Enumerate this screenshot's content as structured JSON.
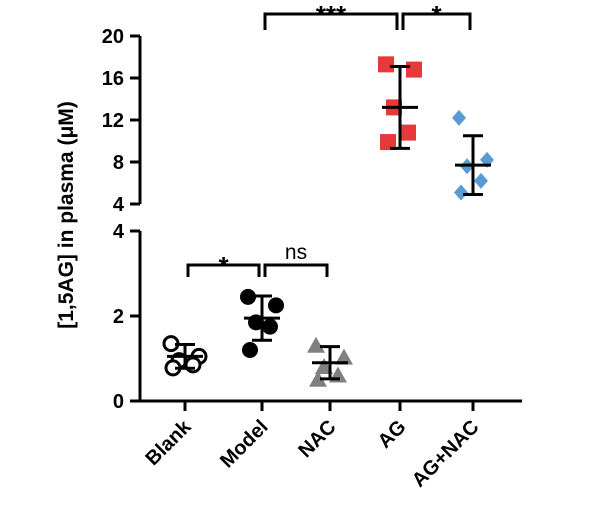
{
  "chart_data": {
    "type": "scatter",
    "ylabel": "[1,5AG] in plasma (μM)",
    "y_axis_segments": [
      {
        "range": [
          0,
          4
        ],
        "ticks": [
          0,
          2,
          4
        ],
        "tick_labels": [
          "0",
          "2",
          "4"
        ]
      },
      {
        "range": [
          4,
          20
        ],
        "ticks": [
          4,
          8,
          12,
          16,
          20
        ],
        "tick_labels": [
          "4",
          "8",
          "12",
          "16",
          "20"
        ]
      }
    ],
    "categories": [
      "Blank",
      "Model",
      "NAC",
      "AG",
      "AG+NAC"
    ],
    "groups": [
      {
        "name": "Blank",
        "marker": "open-circle",
        "color": "#000000",
        "mean": 1.05,
        "sd": 0.28,
        "points": [
          1.35,
          1.05,
          0.95,
          0.85,
          0.78
        ]
      },
      {
        "name": "Model",
        "marker": "filled-circle",
        "color": "#000000",
        "mean": 1.95,
        "sd": 0.52,
        "points": [
          2.45,
          2.25,
          1.85,
          1.75,
          1.2
        ]
      },
      {
        "name": "NAC",
        "marker": "triangle",
        "color": "#808080",
        "mean": 0.9,
        "sd": 0.38,
        "points": [
          1.3,
          1.02,
          0.8,
          0.6,
          0.5
        ]
      },
      {
        "name": "AG",
        "marker": "square",
        "color": "#e8393a",
        "mean": 13.2,
        "sd": 3.9,
        "points": [
          17.3,
          16.8,
          13.2,
          10.8,
          9.9
        ]
      },
      {
        "name": "AG+NAC",
        "marker": "diamond",
        "color": "#5b9bd5",
        "mean": 7.7,
        "sd": 2.8,
        "points": [
          12.2,
          8.2,
          7.6,
          6.2,
          5.1
        ]
      }
    ],
    "comparisons": [
      {
        "from": "Model",
        "to": "AG",
        "label": "***"
      },
      {
        "from": "AG",
        "to": "AG+NAC",
        "label": "*"
      },
      {
        "from": "Blank",
        "to": "Model",
        "label": "*"
      },
      {
        "from": "Model",
        "to": "NAC",
        "label": "ns"
      }
    ]
  }
}
